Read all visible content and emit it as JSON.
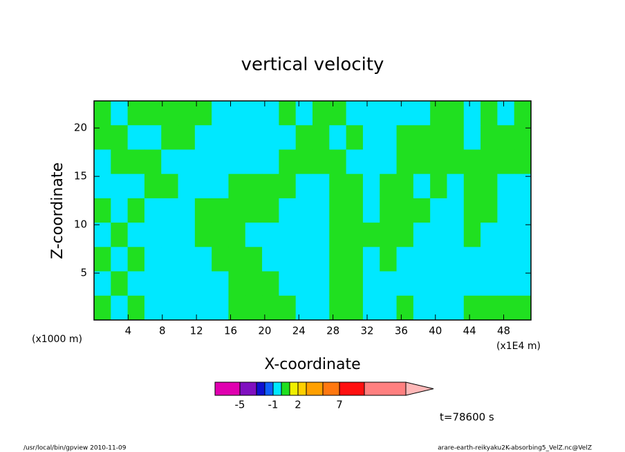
{
  "chart_data": {
    "type": "contour",
    "title": "vertical velocity",
    "x_label": "X-coordinate",
    "y_label": "Z-coordinate",
    "x_unit_left": "(x1000 m)",
    "x_unit_right": "(x1E4 m)",
    "annotation": "t=78600 s",
    "footer_left": "/usr/local/bin/gpview   2010-11-09",
    "footer_right": "arare-earth-reikyaku2K-absorbing5_VelZ.nc@VelZ",
    "xlim": [
      0,
      51.2
    ],
    "ylim": [
      0.15,
      22.8
    ],
    "xticks": [
      4,
      8,
      12,
      16,
      20,
      24,
      28,
      32,
      36,
      40,
      44,
      48
    ],
    "yticks": [
      5,
      10,
      15,
      20
    ],
    "z": [
      [
        0.5,
        -0.5,
        0.5,
        0.5,
        0.5,
        0.5,
        0.5,
        -0.5,
        -0.5,
        -0.5,
        -0.5,
        0.5,
        -0.5,
        0.5,
        0.5,
        -0.5,
        -0.5,
        -0.5,
        -0.5,
        -0.5,
        0.5,
        0.5,
        -0.5,
        0.5,
        -0.5,
        0.5
      ],
      [
        0.5,
        0.5,
        -0.5,
        -0.5,
        0.5,
        0.5,
        -0.5,
        -0.5,
        -0.5,
        -0.5,
        -0.5,
        -0.5,
        0.5,
        0.5,
        -0.5,
        0.5,
        -0.5,
        -0.5,
        0.5,
        0.5,
        0.5,
        0.5,
        -0.5,
        0.5,
        0.5,
        0.5
      ],
      [
        -0.5,
        0.5,
        0.5,
        0.5,
        -0.5,
        -0.5,
        -0.5,
        -0.5,
        -0.5,
        -0.5,
        -0.5,
        0.5,
        0.5,
        0.5,
        0.5,
        -0.5,
        -0.5,
        -0.5,
        0.5,
        0.5,
        0.5,
        0.5,
        0.5,
        0.5,
        0.5,
        0.5
      ],
      [
        -0.5,
        -0.5,
        -0.5,
        0.5,
        0.5,
        -0.5,
        -0.5,
        -0.5,
        0.5,
        0.5,
        0.5,
        0.5,
        -0.5,
        -0.5,
        0.5,
        0.5,
        -0.5,
        0.5,
        0.5,
        -0.5,
        0.5,
        -0.5,
        0.5,
        0.5,
        -0.5,
        -0.5
      ],
      [
        0.5,
        -0.5,
        0.5,
        -0.5,
        -0.5,
        -0.5,
        0.5,
        0.5,
        0.5,
        0.5,
        0.5,
        -0.5,
        -0.5,
        -0.5,
        0.5,
        0.5,
        -0.5,
        0.5,
        0.5,
        0.5,
        -0.5,
        -0.5,
        0.5,
        0.5,
        -0.5,
        -0.5
      ],
      [
        -0.5,
        0.5,
        -0.5,
        -0.5,
        -0.5,
        -0.5,
        0.5,
        0.5,
        0.5,
        -0.5,
        -0.5,
        -0.5,
        -0.5,
        -0.5,
        0.5,
        0.5,
        0.5,
        0.5,
        0.5,
        -0.5,
        -0.5,
        -0.5,
        0.5,
        -0.5,
        -0.5,
        -0.5
      ],
      [
        0.5,
        -0.5,
        0.5,
        -0.5,
        -0.5,
        -0.5,
        -0.5,
        0.5,
        0.5,
        0.5,
        -0.5,
        -0.5,
        -0.5,
        -0.5,
        0.5,
        0.5,
        -0.5,
        0.5,
        -0.5,
        -0.5,
        -0.5,
        -0.5,
        -0.5,
        -0.5,
        -0.5,
        -0.5
      ],
      [
        -0.5,
        0.5,
        -0.5,
        -0.5,
        -0.5,
        -0.5,
        -0.5,
        -0.5,
        0.5,
        0.5,
        0.5,
        -0.5,
        -0.5,
        -0.5,
        0.5,
        0.5,
        -0.5,
        -0.5,
        -0.5,
        -0.5,
        -0.5,
        -0.5,
        -0.5,
        -0.5,
        -0.5,
        -0.5
      ],
      [
        0.5,
        -0.5,
        0.5,
        -0.5,
        -0.5,
        -0.5,
        -0.5,
        -0.5,
        0.5,
        0.5,
        0.5,
        0.5,
        -0.5,
        -0.5,
        0.5,
        0.5,
        -0.5,
        -0.5,
        0.5,
        -0.5,
        -0.5,
        -0.5,
        0.5,
        0.5,
        0.5,
        0.5
      ]
    ],
    "levels": [
      -8,
      -5,
      -3,
      -2,
      -1,
      0,
      1,
      2,
      3,
      5,
      7,
      10,
      15
    ],
    "level_colors": [
      "#e000b0",
      "#8010c0",
      "#1010d0",
      "#1060ff",
      "#00e8ff",
      "#20e020",
      "#f0f000",
      "#ffd000",
      "#ffa000",
      "#ff7810",
      "#ff1010",
      "#ff8080"
    ],
    "overflow_color": "#ffb8b8",
    "colorbar_ticks": [
      -5,
      -1,
      2,
      7
    ]
  }
}
